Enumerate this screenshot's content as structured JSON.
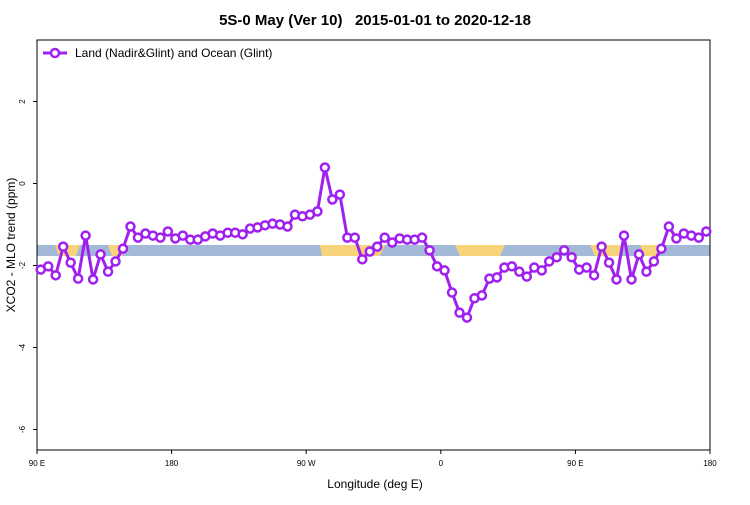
{
  "chart_data": {
    "type": "line",
    "title": "5S-0 May (Ver 10)   2015-01-01 to 2020-12-18",
    "x_label": "Longitude (deg E)",
    "y_label": "XCO2 - MLO trend (ppm)",
    "xlim": [
      90,
      540
    ],
    "xticks": [
      {
        "value": 90,
        "label": "90 E"
      },
      180,
      {
        "value": 270,
        "label": "90 W"
      },
      {
        "value": 360,
        "label": "0"
      },
      {
        "value": 450,
        "label": "90 E"
      },
      {
        "value": 540,
        "label": "180"
      }
    ],
    "ylim": [
      -6.5,
      3.5
    ],
    "yticks": [
      -6,
      -4,
      -2,
      0,
      2
    ],
    "legend": "top-left",
    "x": [
      92.5,
      97.5,
      102.5,
      107.5,
      112.5,
      117.5,
      122.5,
      127.5,
      132.5,
      137.5,
      142.5,
      147.5,
      152.5,
      157.5,
      162.5,
      167.5,
      172.5,
      177.5,
      182.5,
      187.5,
      192.5,
      197.5,
      202.5,
      207.5,
      212.5,
      217.5,
      222.5,
      227.5,
      232.5,
      237.5,
      242.5,
      247.5,
      252.5,
      257.5,
      262.5,
      267.5,
      272.5,
      277.5,
      282.5,
      287.5,
      292.5,
      297.5,
      302.5,
      307.5,
      312.5,
      317.5,
      322.5,
      327.5,
      332.5,
      337.5,
      342.5,
      347.5,
      352.5,
      357.5,
      362.5,
      367.5,
      372.5,
      377.5,
      382.5,
      387.5,
      392.5,
      397.5,
      402.5,
      407.5,
      412.5,
      417.5,
      422.5,
      427.5,
      432.5,
      437.5,
      442.5,
      447.5,
      452.5,
      457.5,
      462.5,
      467.5,
      472.5,
      477.5,
      482.5,
      487.5,
      492.5,
      497.5,
      502.5,
      507.5,
      512.5,
      517.5,
      522.5,
      527.5,
      532.5,
      537.5
    ],
    "series": [
      {
        "name": "Land (Nadir&Glint) and Ocean (Glint)",
        "color": "#a020f0",
        "values": [
          -2.1,
          -2.02,
          -2.24,
          -1.54,
          -1.93,
          -2.32,
          -1.27,
          -2.34,
          -1.73,
          -2.15,
          -1.9,
          -1.59,
          -1.05,
          -1.32,
          -1.22,
          -1.27,
          -1.32,
          -1.17,
          -1.34,
          -1.27,
          -1.37,
          -1.37,
          -1.29,
          -1.22,
          -1.27,
          -1.2,
          -1.2,
          -1.24,
          -1.1,
          -1.07,
          -1.02,
          -0.98,
          -1.0,
          -1.05,
          -0.76,
          -0.8,
          -0.76,
          -0.68,
          0.39,
          -0.39,
          -0.27,
          -1.32,
          -1.32,
          -1.85,
          -1.66,
          -1.54,
          -1.32,
          -1.44,
          -1.34,
          -1.37,
          -1.37,
          -1.32,
          -1.63,
          -2.02,
          -2.12,
          -2.66,
          -3.15,
          -3.27,
          -2.8,
          -2.73,
          -2.32,
          -2.29,
          -2.05,
          -2.02,
          -2.15,
          -2.27,
          -2.05,
          -2.12,
          -1.9,
          -1.8,
          -1.63,
          -1.8,
          -2.1,
          -2.05,
          -2.24,
          -1.54,
          -1.93,
          -2.34,
          -1.27,
          -2.34,
          -1.73,
          -2.15,
          -1.9,
          -1.59,
          -1.05,
          -1.34,
          -1.22,
          -1.27,
          -1.32,
          -1.17
        ]
      }
    ]
  }
}
